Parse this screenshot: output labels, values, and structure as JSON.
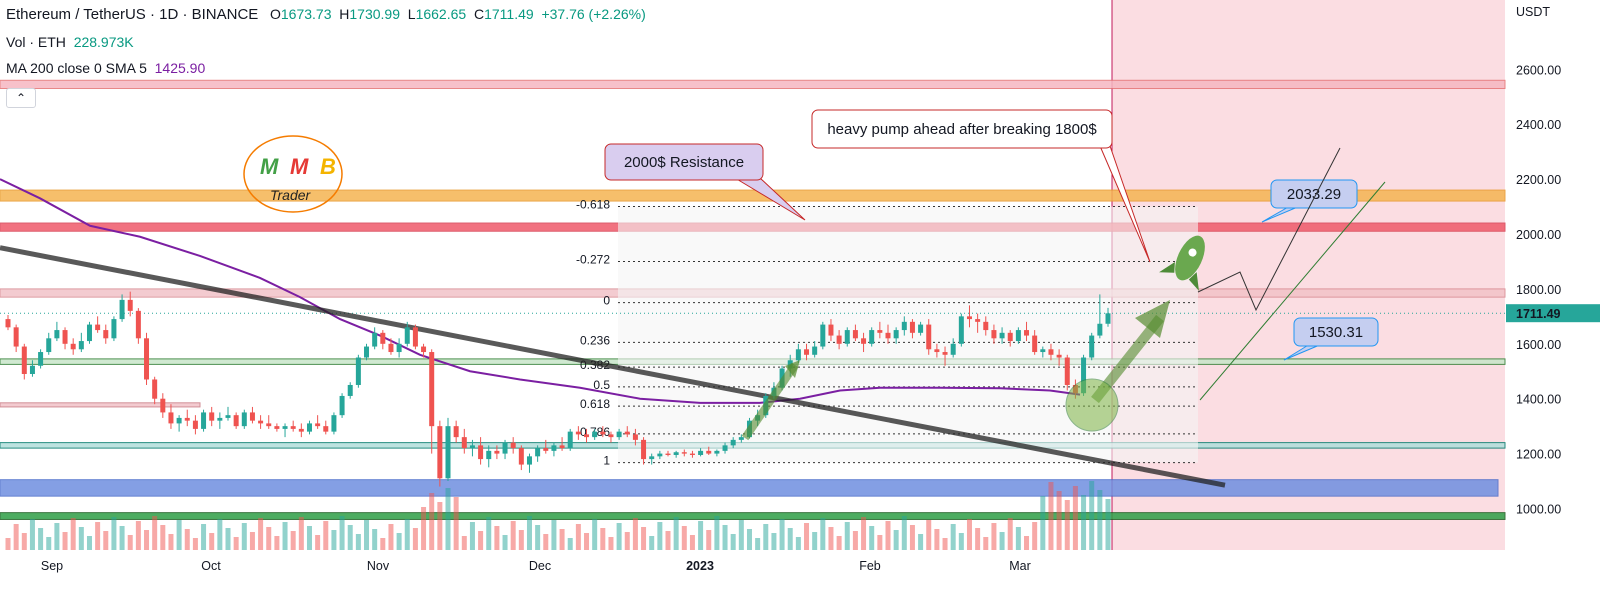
{
  "header": {
    "symbol": "Ethereum / TetherUS · 1D · BINANCE",
    "o_label": "O",
    "o": "1673.73",
    "h_label": "H",
    "h": "1730.99",
    "l_label": "L",
    "l": "1662.65",
    "c_label": "C",
    "c": "1711.49",
    "change": "+37.76 (+2.26%)",
    "vol_label": "Vol · ETH",
    "vol": "228.973K",
    "ma_label": "MA 200 close 0 SMA 5",
    "ma": "1425.90"
  },
  "collapse_icon": "chevron-up-icon",
  "logo_text": {
    "letters": [
      "M",
      "M",
      "B"
    ],
    "trader": "Trader"
  },
  "annotations": {
    "resistance": "2000$ Resistance",
    "pump": "heavy pump ahead after breaking 1800$",
    "target_high": "2033.29",
    "target_low": "1530.31",
    "rocket": "rocket-icon"
  },
  "colors": {
    "up": "#26a69a",
    "down": "#ef5350",
    "ma": "#7b1fa2",
    "zone_pink": "#f8c7cf",
    "resistance_band": "#ef5a6a",
    "orange_band": "#f5b452",
    "blue_band": "#6f8fe0",
    "green_band": "#2e9e46",
    "callout_fill": "#d9cdef"
  },
  "chart_data": {
    "type": "candlestick",
    "title": "Ethereum / TetherUS · 1D · BINANCE",
    "currency_label": "USDT",
    "price_axis_ticks": [
      2600,
      2400,
      2200,
      2000,
      1800,
      1600,
      1400,
      1200,
      1000
    ],
    "price_axis_labels": [
      "2600.00",
      "2400.00",
      "2200.00",
      "2000.00",
      "1800.00",
      "1600.00",
      "1400.00",
      "1200.00",
      "1000.00"
    ],
    "ylim": [
      880,
      2820
    ],
    "current_price": "1711.49",
    "time_axis_labels": [
      "Sep",
      "Oct",
      "Nov",
      "Dec",
      "2023",
      "Feb",
      "Mar"
    ],
    "candles": [
      [
        1690,
        1705,
        1650,
        1660
      ],
      [
        1660,
        1670,
        1570,
        1590
      ],
      [
        1590,
        1600,
        1470,
        1490
      ],
      [
        1490,
        1540,
        1480,
        1520
      ],
      [
        1520,
        1580,
        1510,
        1570
      ],
      [
        1570,
        1640,
        1560,
        1620
      ],
      [
        1620,
        1680,
        1610,
        1650
      ],
      [
        1650,
        1660,
        1580,
        1600
      ],
      [
        1600,
        1620,
        1560,
        1580
      ],
      [
        1580,
        1640,
        1570,
        1610
      ],
      [
        1610,
        1680,
        1600,
        1670
      ],
      [
        1670,
        1700,
        1640,
        1650
      ],
      [
        1650,
        1670,
        1600,
        1620
      ],
      [
        1620,
        1700,
        1610,
        1690
      ],
      [
        1690,
        1780,
        1680,
        1760
      ],
      [
        1760,
        1790,
        1700,
        1720
      ],
      [
        1720,
        1730,
        1600,
        1620
      ],
      [
        1620,
        1640,
        1450,
        1470
      ],
      [
        1470,
        1480,
        1380,
        1400
      ],
      [
        1400,
        1420,
        1330,
        1350
      ],
      [
        1350,
        1380,
        1290,
        1310
      ],
      [
        1310,
        1340,
        1280,
        1330
      ],
      [
        1330,
        1360,
        1300,
        1320
      ],
      [
        1320,
        1340,
        1270,
        1290
      ],
      [
        1290,
        1360,
        1280,
        1350
      ],
      [
        1350,
        1370,
        1300,
        1320
      ],
      [
        1320,
        1350,
        1290,
        1330
      ],
      [
        1330,
        1370,
        1320,
        1340
      ],
      [
        1340,
        1350,
        1290,
        1300
      ],
      [
        1300,
        1360,
        1290,
        1350
      ],
      [
        1350,
        1370,
        1310,
        1320
      ],
      [
        1320,
        1340,
        1290,
        1310
      ],
      [
        1310,
        1340,
        1290,
        1300
      ],
      [
        1300,
        1310,
        1280,
        1290
      ],
      [
        1290,
        1310,
        1260,
        1300
      ],
      [
        1300,
        1320,
        1280,
        1290
      ],
      [
        1290,
        1310,
        1260,
        1280
      ],
      [
        1280,
        1320,
        1270,
        1310
      ],
      [
        1310,
        1340,
        1290,
        1300
      ],
      [
        1300,
        1320,
        1270,
        1280
      ],
      [
        1280,
        1350,
        1270,
        1340
      ],
      [
        1340,
        1420,
        1330,
        1410
      ],
      [
        1410,
        1460,
        1400,
        1450
      ],
      [
        1450,
        1560,
        1440,
        1550
      ],
      [
        1550,
        1600,
        1540,
        1590
      ],
      [
        1590,
        1660,
        1580,
        1640
      ],
      [
        1640,
        1650,
        1580,
        1600
      ],
      [
        1600,
        1620,
        1560,
        1570
      ],
      [
        1570,
        1620,
        1550,
        1600
      ],
      [
        1600,
        1680,
        1590,
        1660
      ],
      [
        1660,
        1670,
        1580,
        1590
      ],
      [
        1590,
        1600,
        1550,
        1570
      ],
      [
        1570,
        1580,
        1200,
        1300
      ],
      [
        1300,
        1320,
        1080,
        1110
      ],
      [
        1110,
        1330,
        1100,
        1300
      ],
      [
        1300,
        1320,
        1240,
        1260
      ],
      [
        1260,
        1290,
        1200,
        1220
      ],
      [
        1220,
        1250,
        1190,
        1230
      ],
      [
        1230,
        1260,
        1160,
        1180
      ],
      [
        1180,
        1230,
        1150,
        1210
      ],
      [
        1210,
        1230,
        1180,
        1200
      ],
      [
        1200,
        1250,
        1180,
        1240
      ],
      [
        1240,
        1260,
        1200,
        1220
      ],
      [
        1220,
        1230,
        1140,
        1160
      ],
      [
        1160,
        1200,
        1130,
        1190
      ],
      [
        1190,
        1230,
        1170,
        1220
      ],
      [
        1220,
        1250,
        1200,
        1210
      ],
      [
        1210,
        1240,
        1190,
        1230
      ],
      [
        1230,
        1260,
        1210,
        1220
      ],
      [
        1220,
        1290,
        1210,
        1280
      ],
      [
        1280,
        1300,
        1250,
        1270
      ],
      [
        1270,
        1290,
        1240,
        1260
      ],
      [
        1260,
        1290,
        1250,
        1280
      ],
      [
        1280,
        1300,
        1260,
        1270
      ],
      [
        1270,
        1280,
        1240,
        1260
      ],
      [
        1260,
        1290,
        1250,
        1280
      ],
      [
        1280,
        1300,
        1260,
        1270
      ],
      [
        1270,
        1290,
        1230,
        1250
      ],
      [
        1250,
        1260,
        1160,
        1180
      ],
      [
        1180,
        1200,
        1160,
        1190
      ],
      [
        1190,
        1210,
        1180,
        1200
      ],
      [
        1200,
        1210,
        1190,
        1195
      ],
      [
        1195,
        1210,
        1185,
        1205
      ],
      [
        1205,
        1215,
        1190,
        1200
      ],
      [
        1200,
        1210,
        1185,
        1195
      ],
      [
        1195,
        1220,
        1190,
        1210
      ],
      [
        1210,
        1225,
        1195,
        1200
      ],
      [
        1200,
        1215,
        1190,
        1210
      ],
      [
        1210,
        1240,
        1200,
        1230
      ],
      [
        1230,
        1260,
        1220,
        1250
      ],
      [
        1250,
        1270,
        1240,
        1260
      ],
      [
        1260,
        1330,
        1255,
        1320
      ],
      [
        1320,
        1360,
        1300,
        1340
      ],
      [
        1340,
        1420,
        1330,
        1410
      ],
      [
        1410,
        1460,
        1400,
        1440
      ],
      [
        1440,
        1520,
        1430,
        1510
      ],
      [
        1510,
        1560,
        1480,
        1540
      ],
      [
        1540,
        1600,
        1530,
        1580
      ],
      [
        1580,
        1600,
        1540,
        1560
      ],
      [
        1560,
        1610,
        1550,
        1590
      ],
      [
        1590,
        1680,
        1580,
        1670
      ],
      [
        1670,
        1690,
        1610,
        1630
      ],
      [
        1630,
        1650,
        1580,
        1600
      ],
      [
        1600,
        1660,
        1590,
        1650
      ],
      [
        1650,
        1670,
        1610,
        1620
      ],
      [
        1620,
        1640,
        1570,
        1600
      ],
      [
        1600,
        1660,
        1590,
        1650
      ],
      [
        1650,
        1680,
        1620,
        1640
      ],
      [
        1640,
        1670,
        1600,
        1620
      ],
      [
        1620,
        1660,
        1600,
        1650
      ],
      [
        1650,
        1700,
        1630,
        1680
      ],
      [
        1680,
        1690,
        1620,
        1640
      ],
      [
        1640,
        1680,
        1630,
        1670
      ],
      [
        1670,
        1690,
        1560,
        1580
      ],
      [
        1580,
        1600,
        1550,
        1570
      ],
      [
        1570,
        1590,
        1520,
        1560
      ],
      [
        1560,
        1620,
        1550,
        1600
      ],
      [
        1600,
        1710,
        1590,
        1700
      ],
      [
        1700,
        1740,
        1660,
        1690
      ],
      [
        1690,
        1710,
        1640,
        1680
      ],
      [
        1680,
        1700,
        1630,
        1650
      ],
      [
        1650,
        1670,
        1600,
        1620
      ],
      [
        1620,
        1660,
        1600,
        1640
      ],
      [
        1640,
        1650,
        1590,
        1610
      ],
      [
        1610,
        1660,
        1600,
        1650
      ],
      [
        1650,
        1680,
        1610,
        1630
      ],
      [
        1630,
        1650,
        1560,
        1570
      ],
      [
        1570,
        1590,
        1550,
        1580
      ],
      [
        1580,
        1600,
        1540,
        1560
      ],
      [
        1560,
        1580,
        1520,
        1550
      ],
      [
        1550,
        1560,
        1430,
        1450
      ],
      [
        1450,
        1470,
        1400,
        1420
      ],
      [
        1420,
        1560,
        1410,
        1550
      ],
      [
        1550,
        1640,
        1540,
        1630
      ],
      [
        1630,
        1780,
        1620,
        1673
      ],
      [
        1673,
        1731,
        1662,
        1711
      ]
    ],
    "ma200": [
      [
        0,
        2200
      ],
      [
        40,
        2130
      ],
      [
        90,
        2030
      ],
      [
        140,
        1990
      ],
      [
        200,
        1920
      ],
      [
        260,
        1840
      ],
      [
        300,
        1770
      ],
      [
        340,
        1690
      ],
      [
        380,
        1630
      ],
      [
        420,
        1560
      ],
      [
        470,
        1500
      ],
      [
        520,
        1470
      ],
      [
        580,
        1440
      ],
      [
        640,
        1400
      ],
      [
        700,
        1385
      ],
      [
        760,
        1385
      ],
      [
        800,
        1400
      ],
      [
        840,
        1430
      ],
      [
        880,
        1440
      ],
      [
        940,
        1440
      ],
      [
        1000,
        1438
      ],
      [
        1050,
        1430
      ],
      [
        1080,
        1415
      ]
    ],
    "fibonacci": {
      "labels": [
        "-0.618",
        "-0.272",
        "0",
        "0.236",
        "0.382",
        "0.5",
        "0.618",
        "0.786",
        "1"
      ],
      "prices": [
        2100,
        1900,
        1750,
        1605,
        1515,
        1443,
        1373,
        1272,
        1167
      ]
    },
    "zones": [
      {
        "name": "pink-top",
        "low": 2530,
        "high": 2560
      },
      {
        "name": "orange",
        "low": 2120,
        "high": 2160
      },
      {
        "name": "red-resistance",
        "low": 2010,
        "high": 2040
      },
      {
        "name": "pink-1800",
        "low": 1770,
        "high": 1800
      },
      {
        "name": "green-1530",
        "low": 1525,
        "high": 1545
      },
      {
        "name": "pink-1380",
        "low": 1370,
        "high": 1385
      },
      {
        "name": "teal-1230",
        "low": 1220,
        "high": 1240
      },
      {
        "name": "blue",
        "low": 1045,
        "high": 1105
      },
      {
        "name": "green-bottom",
        "low": 960,
        "high": 985
      }
    ]
  }
}
